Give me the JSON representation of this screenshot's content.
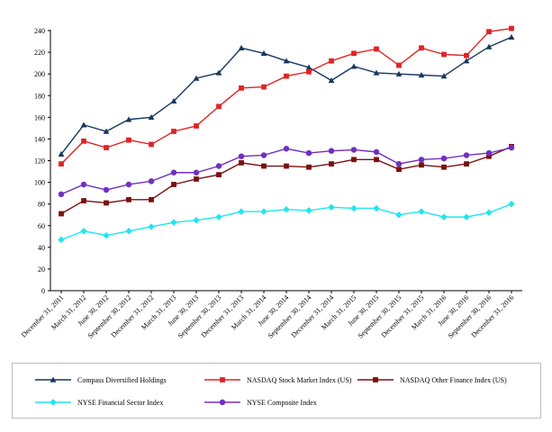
{
  "chart_data": {
    "type": "line",
    "title": "",
    "xlabel": "",
    "ylabel": "",
    "ylim": [
      0,
      240
    ],
    "yticks": [
      0,
      20,
      40,
      60,
      80,
      100,
      120,
      140,
      160,
      180,
      200,
      220,
      240
    ],
    "grid": false,
    "legend_position": "bottom",
    "categories": [
      "December 31, 2011",
      "March 31, 2012",
      "June 30, 2012",
      "September 30, 2012",
      "December 31, 2012",
      "March 31, 2013",
      "June 30, 2013",
      "September 30, 2013",
      "December 31, 2013",
      "March 31, 2014",
      "June 30, 2014",
      "September 30, 2014",
      "December 31, 2014",
      "March 31, 2015",
      "June 30, 2015",
      "September 30, 2015",
      "December 31, 2015",
      "March 31, 2016",
      "June 30, 2016",
      "September 30, 2016",
      "December 31, 2016"
    ],
    "series": [
      {
        "name": "Compass Diversified Holdings",
        "color": "#17375e",
        "marker": "triangle",
        "values": [
          126,
          153,
          147,
          158,
          160,
          175,
          196,
          201,
          224,
          219,
          212,
          206,
          194,
          207,
          201,
          200,
          199,
          198,
          212,
          225,
          234
        ]
      },
      {
        "name": "NASDAQ Stock Market Index (US)",
        "color": "#e02424",
        "marker": "square",
        "values": [
          117,
          138,
          132,
          139,
          135,
          147,
          152,
          170,
          187,
          188,
          198,
          202,
          212,
          219,
          223,
          208,
          224,
          218,
          217,
          239,
          242
        ]
      },
      {
        "name": "NASDAQ Other Finance Index (US)",
        "color": "#7a1010",
        "marker": "square",
        "values": [
          71,
          83,
          81,
          84,
          84,
          98,
          103,
          107,
          118,
          115,
          115,
          114,
          117,
          121,
          121,
          112,
          116,
          114,
          117,
          124,
          133
        ]
      },
      {
        "name": "NYSE Financial Sector Index",
        "color": "#22e5ef",
        "marker": "diamond",
        "values": [
          47,
          55,
          51,
          55,
          59,
          63,
          65,
          68,
          73,
          73,
          75,
          74,
          77,
          76,
          76,
          70,
          73,
          68,
          68,
          72,
          80
        ]
      },
      {
        "name": "NYSE Composite Index",
        "color": "#7030c0",
        "marker": "circle",
        "values": [
          89,
          98,
          93,
          98,
          101,
          109,
          109,
          115,
          124,
          125,
          131,
          127,
          129,
          130,
          128,
          117,
          121,
          122,
          125,
          127,
          132
        ]
      }
    ]
  }
}
